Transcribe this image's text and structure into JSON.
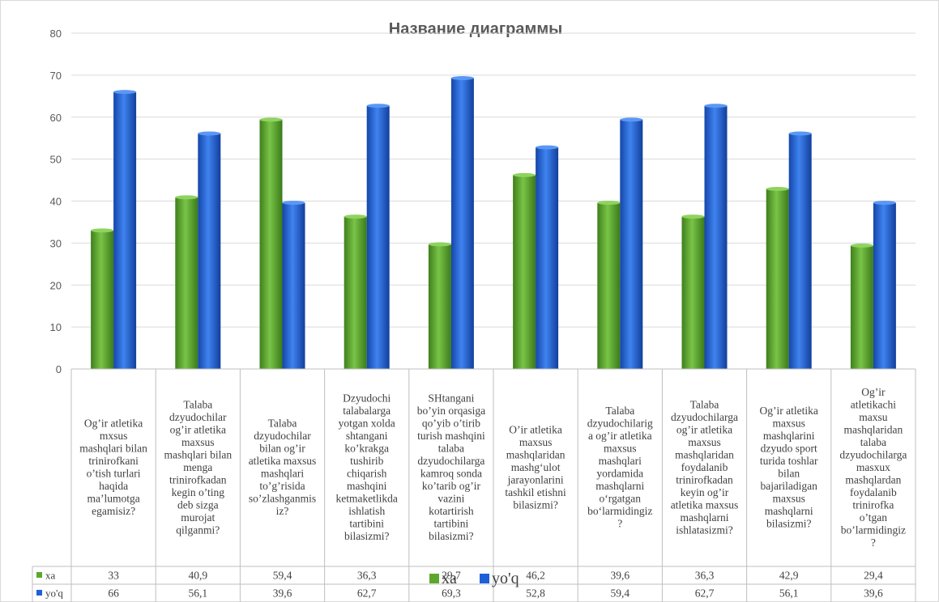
{
  "chart_data": {
    "type": "bar",
    "title": "Название диаграммы",
    "categories": [
      "Og’ir atletika mxsus mashqlari bilan trinirofkani o’tish turlari haqida ma’lumotga egamisiz?",
      "Talaba dzyudochilar og’ir atletika maxsus mashqlari bilan menga trinirofkadan kegin o’ting deb sizga murojat qilganmi?",
      "Talaba dzyudochilar bilan og’ir atletika maxsus mashqlari to’g’risida so’zlashganmisiz?",
      "Dzyudochi talabalarga yotgan xolda shtangani ko’krakga tushirib chiqarish mashqini ketmaketlikda ishlatish tartibini bilasizmi?",
      "SHtangani bo’yin orqasiga qo’yib o’tirib turish mashqini talaba dzyudochilarga kamroq sonda ko’tarib og’ir vazini kotartirish tartibini bilasizmi?",
      "O’ir atletika maxsus mashqlaridan mashg‘ulot jarayonlarini tashkil etishni bilasizmi?",
      "Talaba dzyudochilariga og’ir atletika maxsus mashqlari yordamida mashqlarni o‘rgatgan bo‘larmidingiz?",
      "Talaba dzyudochilarga og’ir atletika maxsus mashqlaridan foydalanib trinirofkadan keyin og’ir atletika maxsus mashqlarni ishlatasizmi?",
      "Og’ir atletika maxsus mashqlarini dzyudo sport turida toshlar bilan bajariladigan maxsus mashqlarni bilasizmi?",
      "Og’ir atletikachi maxsu mashqlaridan talaba dzyudochilarga masxux mashqlardan foydalanib trinirofka o’tgan bo’larmidingiz?"
    ],
    "category_lines": [
      [
        "Og’ir atletika",
        "mxsus",
        "mashqlari bilan",
        "trinirofkani",
        "o’tish turlari",
        "haqida",
        "ma’lumotga",
        "egamisiz?"
      ],
      [
        "Talaba",
        "dzyudochilar",
        "og’ir atletika",
        "maxsus",
        "mashqlari bilan",
        "menga",
        "trinirofkadan",
        "kegin o’ting",
        "deb sizga",
        "murojat",
        "qilganmi?"
      ],
      [
        "Talaba",
        "dzyudochilar",
        "bilan og’ir",
        "atletika maxsus",
        "mashqlari",
        "to’g’risida",
        "so’zlashganmis",
        "iz?"
      ],
      [
        "Dzyudochi",
        "talabalarga",
        "yotgan xolda",
        "shtangani",
        "ko’krakga",
        "tushirib",
        "chiqarish",
        "mashqini",
        "ketmaketlikda",
        "ishlatish",
        "tartibini",
        "bilasizmi?"
      ],
      [
        "SHtangani",
        "bo’yin orqasiga",
        "qo’yib o’tirib",
        "turish mashqini",
        "talaba",
        "dzyudochilarga",
        "kamroq sonda",
        "ko’tarib og’ir",
        "vazini",
        "kotartirish",
        "tartibini",
        "bilasizmi?"
      ],
      [
        "O’ir atletika",
        "maxsus",
        "mashqlaridan",
        "mashg‘ulot",
        "jarayonlarini",
        "tashkil etishni",
        "bilasizmi?"
      ],
      [
        "Talaba",
        "dzyudochilarig",
        "a og’ir atletika",
        "maxsus",
        "mashqlari",
        "yordamida",
        "mashqlarni",
        "o‘rgatgan",
        "bo‘larmidingiz",
        "?"
      ],
      [
        "Talaba",
        "dzyudochilarga",
        "og’ir atletika",
        "maxsus",
        "mashqlaridan",
        "foydalanib",
        "trinirofkadan",
        "keyin og’ir",
        "atletika maxsus",
        "mashqlarni",
        "ishlatasizmi?"
      ],
      [
        "Og’ir atletika",
        "maxsus",
        "mashqlarini",
        "dzyudo sport",
        "turida toshlar",
        "bilan",
        "bajariladigan",
        "maxsus",
        "mashqlarni",
        "bilasizmi?"
      ],
      [
        "Og’ir",
        "atletikachi",
        "maxsu",
        "mashqlaridan",
        "talaba",
        "dzyudochilarga",
        "masxux",
        "mashqlardan",
        "foydalanib",
        "trinirofka",
        "o’tgan",
        "bo’larmidingiz",
        "?"
      ]
    ],
    "series": [
      {
        "name": "xa",
        "color": "#5ea72e",
        "values": [
          33,
          40.9,
          59.4,
          36.3,
          29.7,
          46.2,
          39.6,
          36.3,
          42.9,
          29.4
        ]
      },
      {
        "name": "yo'q",
        "color": "#1f5fd8",
        "values": [
          66,
          56.1,
          39.6,
          62.7,
          69.3,
          52.8,
          59.4,
          62.7,
          56.1,
          39.6
        ]
      }
    ],
    "value_labels": [
      [
        "33",
        "40,9",
        "59,4",
        "36,3",
        "29,7",
        "46,2",
        "39,6",
        "36,3",
        "42,9",
        "29,4"
      ],
      [
        "66",
        "56,1",
        "39,6",
        "62,7",
        "69,3",
        "52,8",
        "59,4",
        "62,7",
        "56,1",
        "39,6"
      ]
    ],
    "ylim": [
      0,
      80
    ],
    "yticks": [
      "0",
      "10",
      "20",
      "30",
      "40",
      "50",
      "60",
      "70",
      "80"
    ],
    "grid": true,
    "legend": {
      "position": "bottom",
      "labels": [
        "xa",
        "yo'q"
      ]
    },
    "data_table": true
  }
}
